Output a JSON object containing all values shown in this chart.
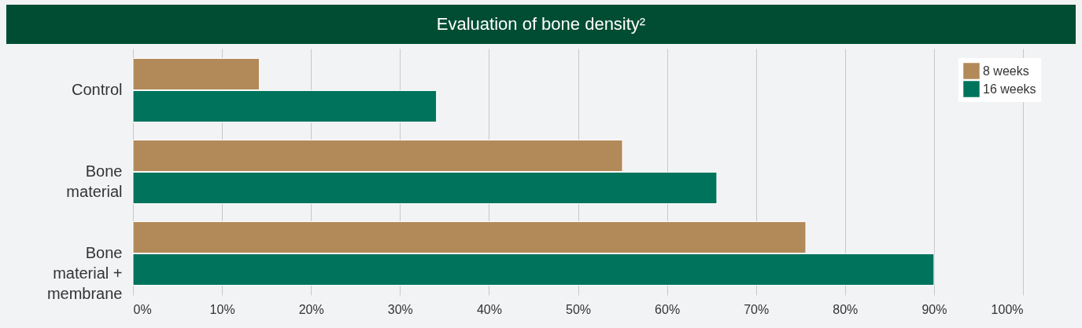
{
  "chart_data": {
    "type": "bar",
    "orientation": "horizontal",
    "title": "Evaluation of bone density²",
    "categories": [
      "Control",
      "Bone\nmaterial",
      "Bone\nmaterial +\nmembrane"
    ],
    "series": [
      {
        "name": "8 weeks",
        "color": "#b28a59",
        "values": [
          14.2,
          55,
          75.6
        ]
      },
      {
        "name": "16 weeks",
        "color": "#00735d",
        "values": [
          34.1,
          65.6,
          90
        ]
      }
    ],
    "xlim": [
      0,
      100
    ],
    "xticks": [
      {
        "value": 0,
        "label": "0%"
      },
      {
        "value": 10,
        "label": "10%"
      },
      {
        "value": 20,
        "label": "20%"
      },
      {
        "value": 30,
        "label": "30%"
      },
      {
        "value": 40,
        "label": "40%"
      },
      {
        "value": 50,
        "label": "50%"
      },
      {
        "value": 60,
        "label": "60%"
      },
      {
        "value": 70,
        "label": "70%"
      },
      {
        "value": 80,
        "label": "80%"
      },
      {
        "value": 90,
        "label": "90%"
      },
      {
        "value": 100,
        "label": "100%"
      }
    ],
    "grid": "x",
    "legend": "top right"
  }
}
